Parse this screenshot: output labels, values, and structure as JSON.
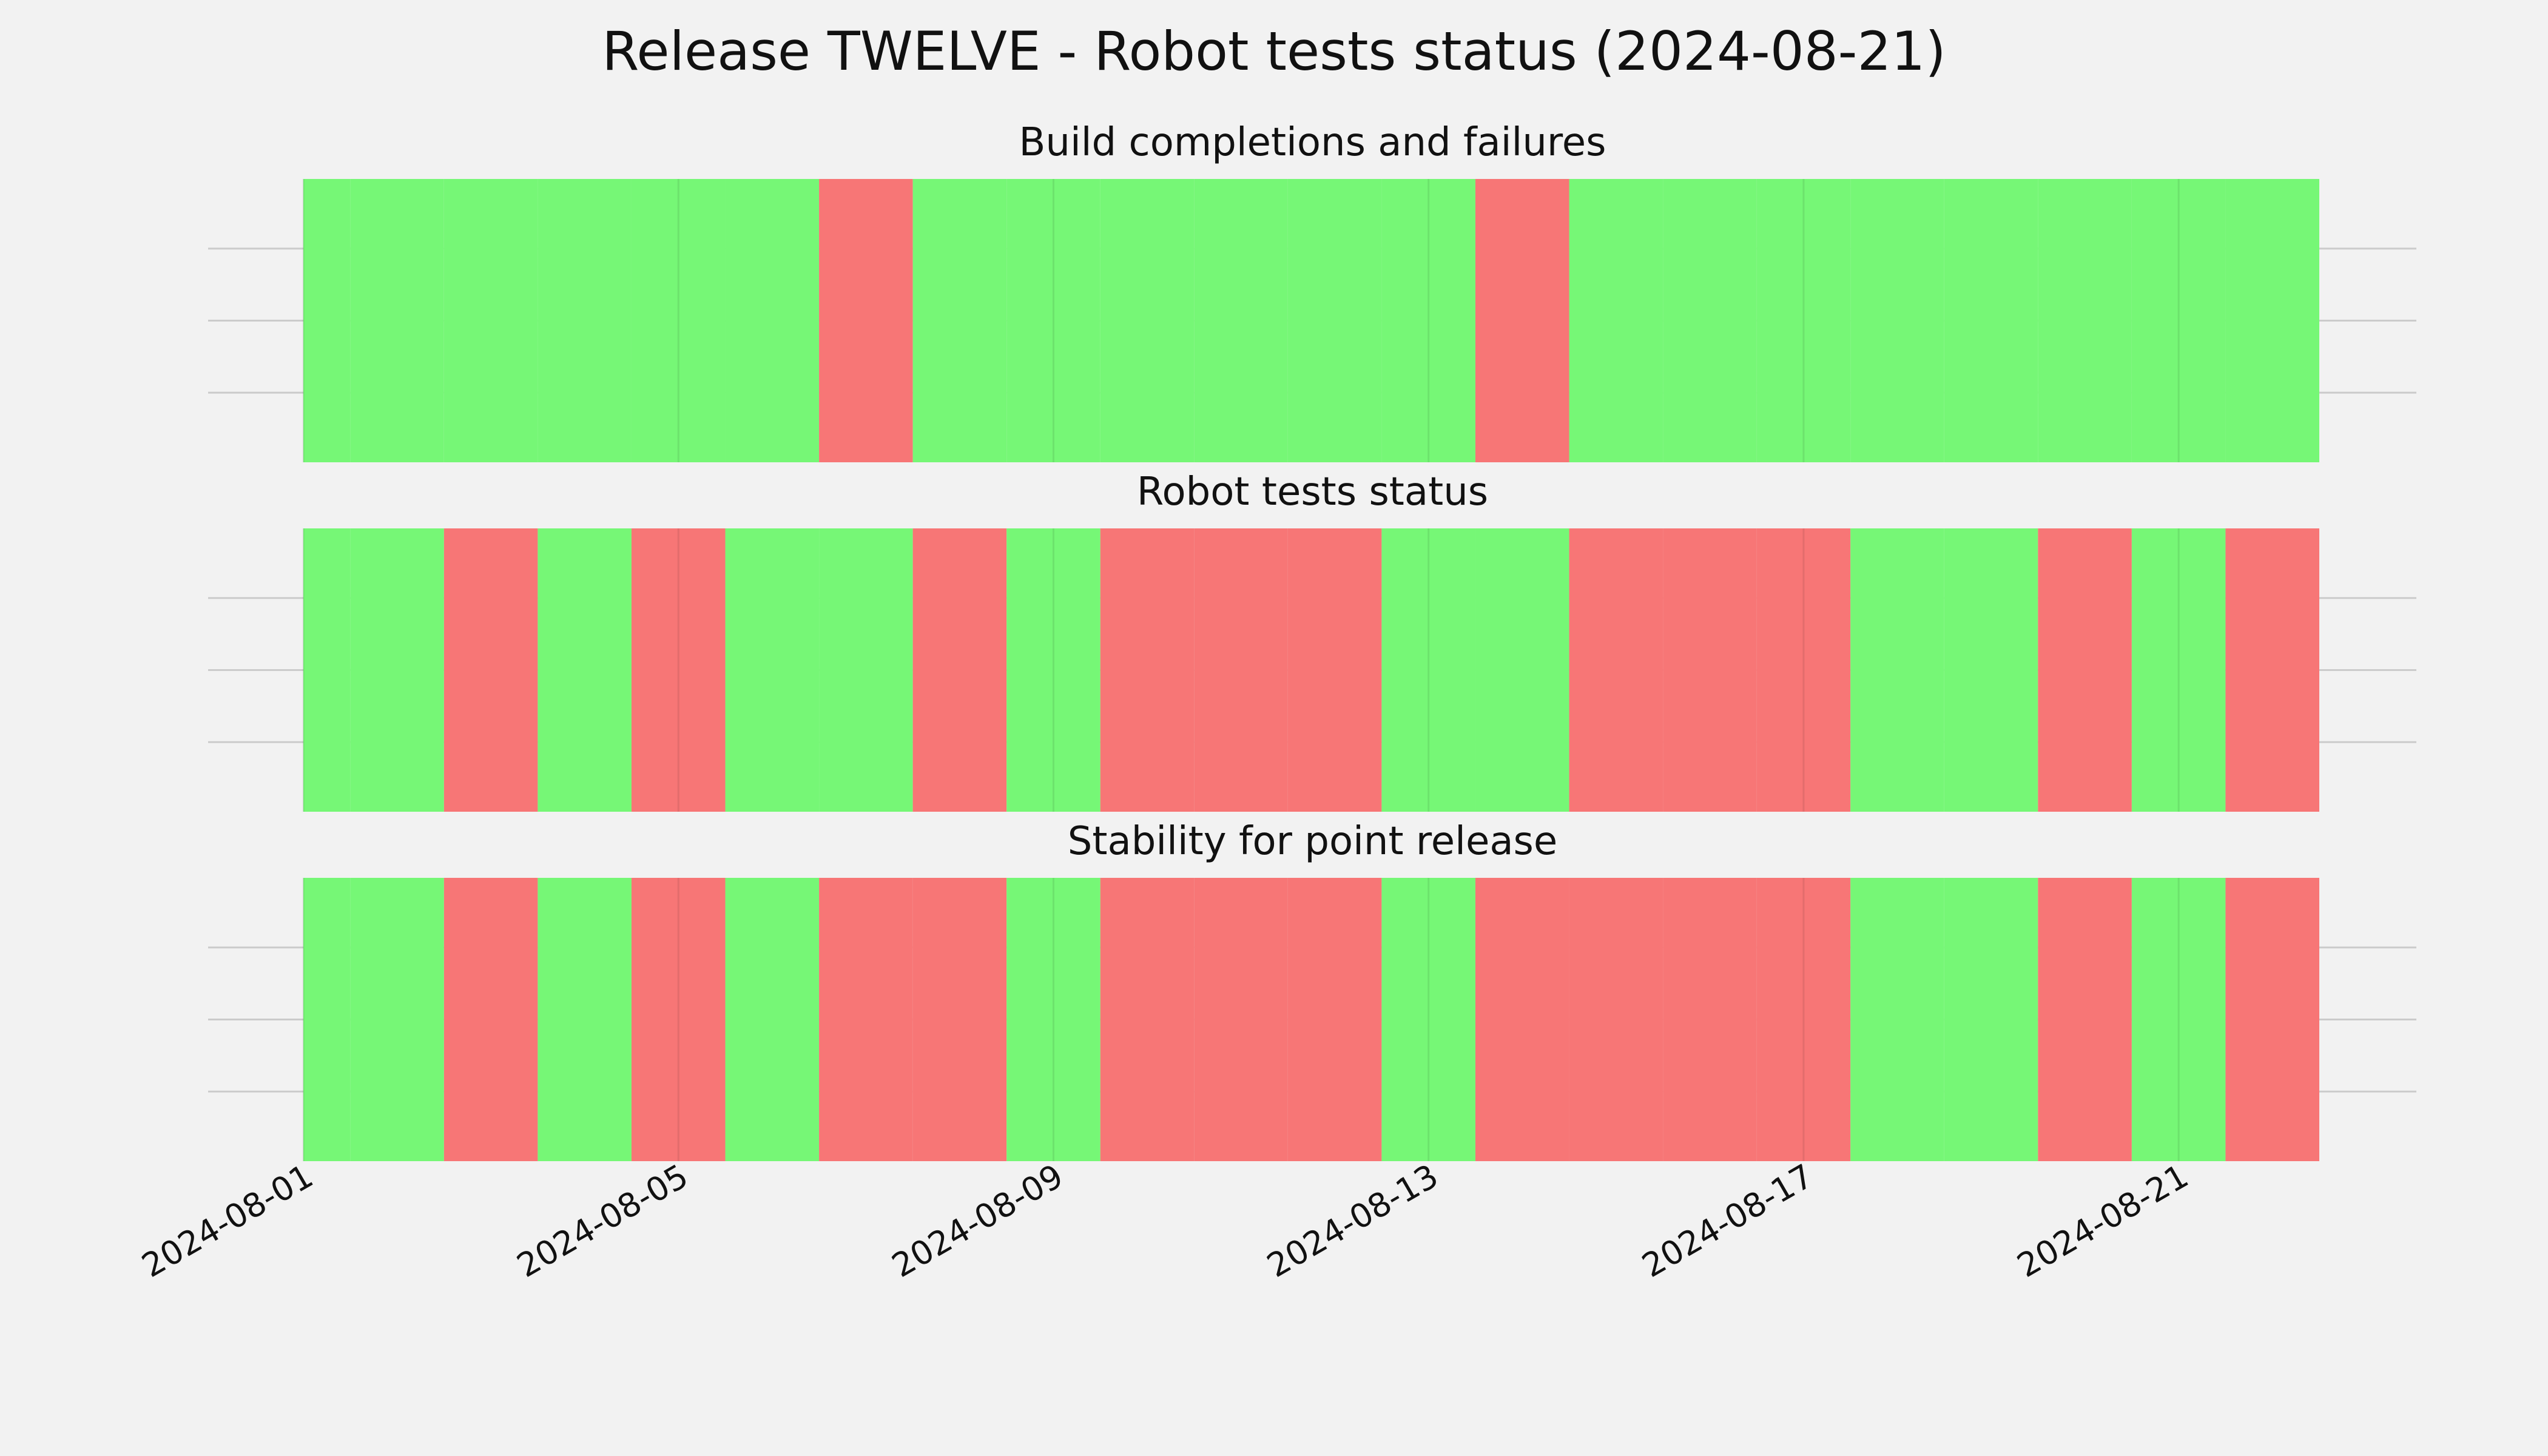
{
  "chart_data": {
    "type": "timeline",
    "title": "Release TWELVE - Robot tests status (2024-08-21)",
    "x_ticks": [
      "2024-08-01",
      "2024-08-05",
      "2024-08-09",
      "2024-08-13",
      "2024-08-17",
      "2024-08-21"
    ],
    "x_range": [
      "2024-07-31",
      "2024-08-22"
    ],
    "grid": true,
    "colors": {
      "pass": "#76f776",
      "fail": "#f77676",
      "background": "#f2f2f2",
      "grid": "#cbcbcb"
    },
    "panels": [
      {
        "title": "Build completions and failures",
        "days": [
          {
            "date": "2024-08-01",
            "status": "pass"
          },
          {
            "date": "2024-08-02",
            "status": "pass"
          },
          {
            "date": "2024-08-03",
            "status": "pass"
          },
          {
            "date": "2024-08-04",
            "status": "pass"
          },
          {
            "date": "2024-08-05",
            "status": "pass"
          },
          {
            "date": "2024-08-06",
            "status": "pass"
          },
          {
            "date": "2024-08-07",
            "status": "fail"
          },
          {
            "date": "2024-08-08",
            "status": "pass"
          },
          {
            "date": "2024-08-09",
            "status": "pass"
          },
          {
            "date": "2024-08-10",
            "status": "pass"
          },
          {
            "date": "2024-08-11",
            "status": "pass"
          },
          {
            "date": "2024-08-12",
            "status": "pass"
          },
          {
            "date": "2024-08-13",
            "status": "pass"
          },
          {
            "date": "2024-08-14",
            "status": "fail"
          },
          {
            "date": "2024-08-15",
            "status": "pass"
          },
          {
            "date": "2024-08-16",
            "status": "pass"
          },
          {
            "date": "2024-08-17",
            "status": "pass"
          },
          {
            "date": "2024-08-18",
            "status": "pass"
          },
          {
            "date": "2024-08-19",
            "status": "pass"
          },
          {
            "date": "2024-08-20",
            "status": "pass"
          },
          {
            "date": "2024-08-21",
            "status": "pass"
          },
          {
            "date": "2024-08-22",
            "status": "pass"
          }
        ]
      },
      {
        "title": "Robot tests status",
        "days": [
          {
            "date": "2024-08-01",
            "status": "pass"
          },
          {
            "date": "2024-08-02",
            "status": "pass"
          },
          {
            "date": "2024-08-03",
            "status": "fail"
          },
          {
            "date": "2024-08-04",
            "status": "pass"
          },
          {
            "date": "2024-08-05",
            "status": "fail"
          },
          {
            "date": "2024-08-06",
            "status": "pass"
          },
          {
            "date": "2024-08-07",
            "status": "pass"
          },
          {
            "date": "2024-08-08",
            "status": "fail"
          },
          {
            "date": "2024-08-09",
            "status": "pass"
          },
          {
            "date": "2024-08-10",
            "status": "fail"
          },
          {
            "date": "2024-08-11",
            "status": "fail"
          },
          {
            "date": "2024-08-12",
            "status": "fail"
          },
          {
            "date": "2024-08-13",
            "status": "pass"
          },
          {
            "date": "2024-08-14",
            "status": "pass"
          },
          {
            "date": "2024-08-15",
            "status": "fail"
          },
          {
            "date": "2024-08-16",
            "status": "fail"
          },
          {
            "date": "2024-08-17",
            "status": "fail"
          },
          {
            "date": "2024-08-18",
            "status": "pass"
          },
          {
            "date": "2024-08-19",
            "status": "pass"
          },
          {
            "date": "2024-08-20",
            "status": "fail"
          },
          {
            "date": "2024-08-21",
            "status": "pass"
          },
          {
            "date": "2024-08-22",
            "status": "fail"
          }
        ]
      },
      {
        "title": "Stability for point release",
        "days": [
          {
            "date": "2024-08-01",
            "status": "pass"
          },
          {
            "date": "2024-08-02",
            "status": "pass"
          },
          {
            "date": "2024-08-03",
            "status": "fail"
          },
          {
            "date": "2024-08-04",
            "status": "pass"
          },
          {
            "date": "2024-08-05",
            "status": "fail"
          },
          {
            "date": "2024-08-06",
            "status": "pass"
          },
          {
            "date": "2024-08-07",
            "status": "fail"
          },
          {
            "date": "2024-08-08",
            "status": "fail"
          },
          {
            "date": "2024-08-09",
            "status": "pass"
          },
          {
            "date": "2024-08-10",
            "status": "fail"
          },
          {
            "date": "2024-08-11",
            "status": "fail"
          },
          {
            "date": "2024-08-12",
            "status": "fail"
          },
          {
            "date": "2024-08-13",
            "status": "pass"
          },
          {
            "date": "2024-08-14",
            "status": "fail"
          },
          {
            "date": "2024-08-15",
            "status": "fail"
          },
          {
            "date": "2024-08-16",
            "status": "fail"
          },
          {
            "date": "2024-08-17",
            "status": "fail"
          },
          {
            "date": "2024-08-18",
            "status": "pass"
          },
          {
            "date": "2024-08-19",
            "status": "pass"
          },
          {
            "date": "2024-08-20",
            "status": "fail"
          },
          {
            "date": "2024-08-21",
            "status": "pass"
          },
          {
            "date": "2024-08-22",
            "status": "fail"
          }
        ]
      }
    ]
  }
}
